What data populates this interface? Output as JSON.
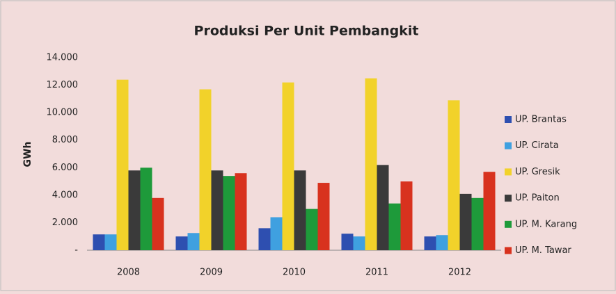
{
  "chart_data": {
    "type": "bar",
    "title": "Produksi Per Unit Pembangkit",
    "y_label": "GWh",
    "categories": [
      "2008",
      "2009",
      "2010",
      "2011",
      "2012"
    ],
    "series": [
      {
        "name": "UP. Brantas",
        "color": "#2e4fb0",
        "values": [
          1150,
          1000,
          1600,
          1200,
          1000
        ]
      },
      {
        "name": "UP. Cirata",
        "color": "#3fa0e0",
        "values": [
          1150,
          1250,
          2400,
          1000,
          1100
        ]
      },
      {
        "name": "UP. Gresik",
        "color": "#f2d22a",
        "values": [
          12400,
          11700,
          12200,
          12500,
          10900
        ]
      },
      {
        "name": "UP. Paiton",
        "color": "#3a3a3a",
        "values": [
          5800,
          5800,
          5800,
          6200,
          4100
        ]
      },
      {
        "name": "UP. M. Karang",
        "color": "#1e9a3a",
        "values": [
          6000,
          5400,
          3000,
          3400,
          3800
        ]
      },
      {
        "name": "UP. M. Tawar",
        "color": "#d8321e",
        "values": [
          3800,
          5600,
          4900,
          5000,
          5700
        ]
      }
    ],
    "ylim": [
      0,
      14000
    ],
    "yticks": [
      {
        "value": 0,
        "label": "-"
      },
      {
        "value": 2000,
        "label": "2.000"
      },
      {
        "value": 4000,
        "label": "4.000"
      },
      {
        "value": 6000,
        "label": "6.000"
      },
      {
        "value": 8000,
        "label": "8.000"
      },
      {
        "value": 10000,
        "label": "10.000"
      },
      {
        "value": 12000,
        "label": "12.000"
      },
      {
        "value": 14000,
        "label": "14.000"
      }
    ],
    "grid": false,
    "legend": "right"
  }
}
